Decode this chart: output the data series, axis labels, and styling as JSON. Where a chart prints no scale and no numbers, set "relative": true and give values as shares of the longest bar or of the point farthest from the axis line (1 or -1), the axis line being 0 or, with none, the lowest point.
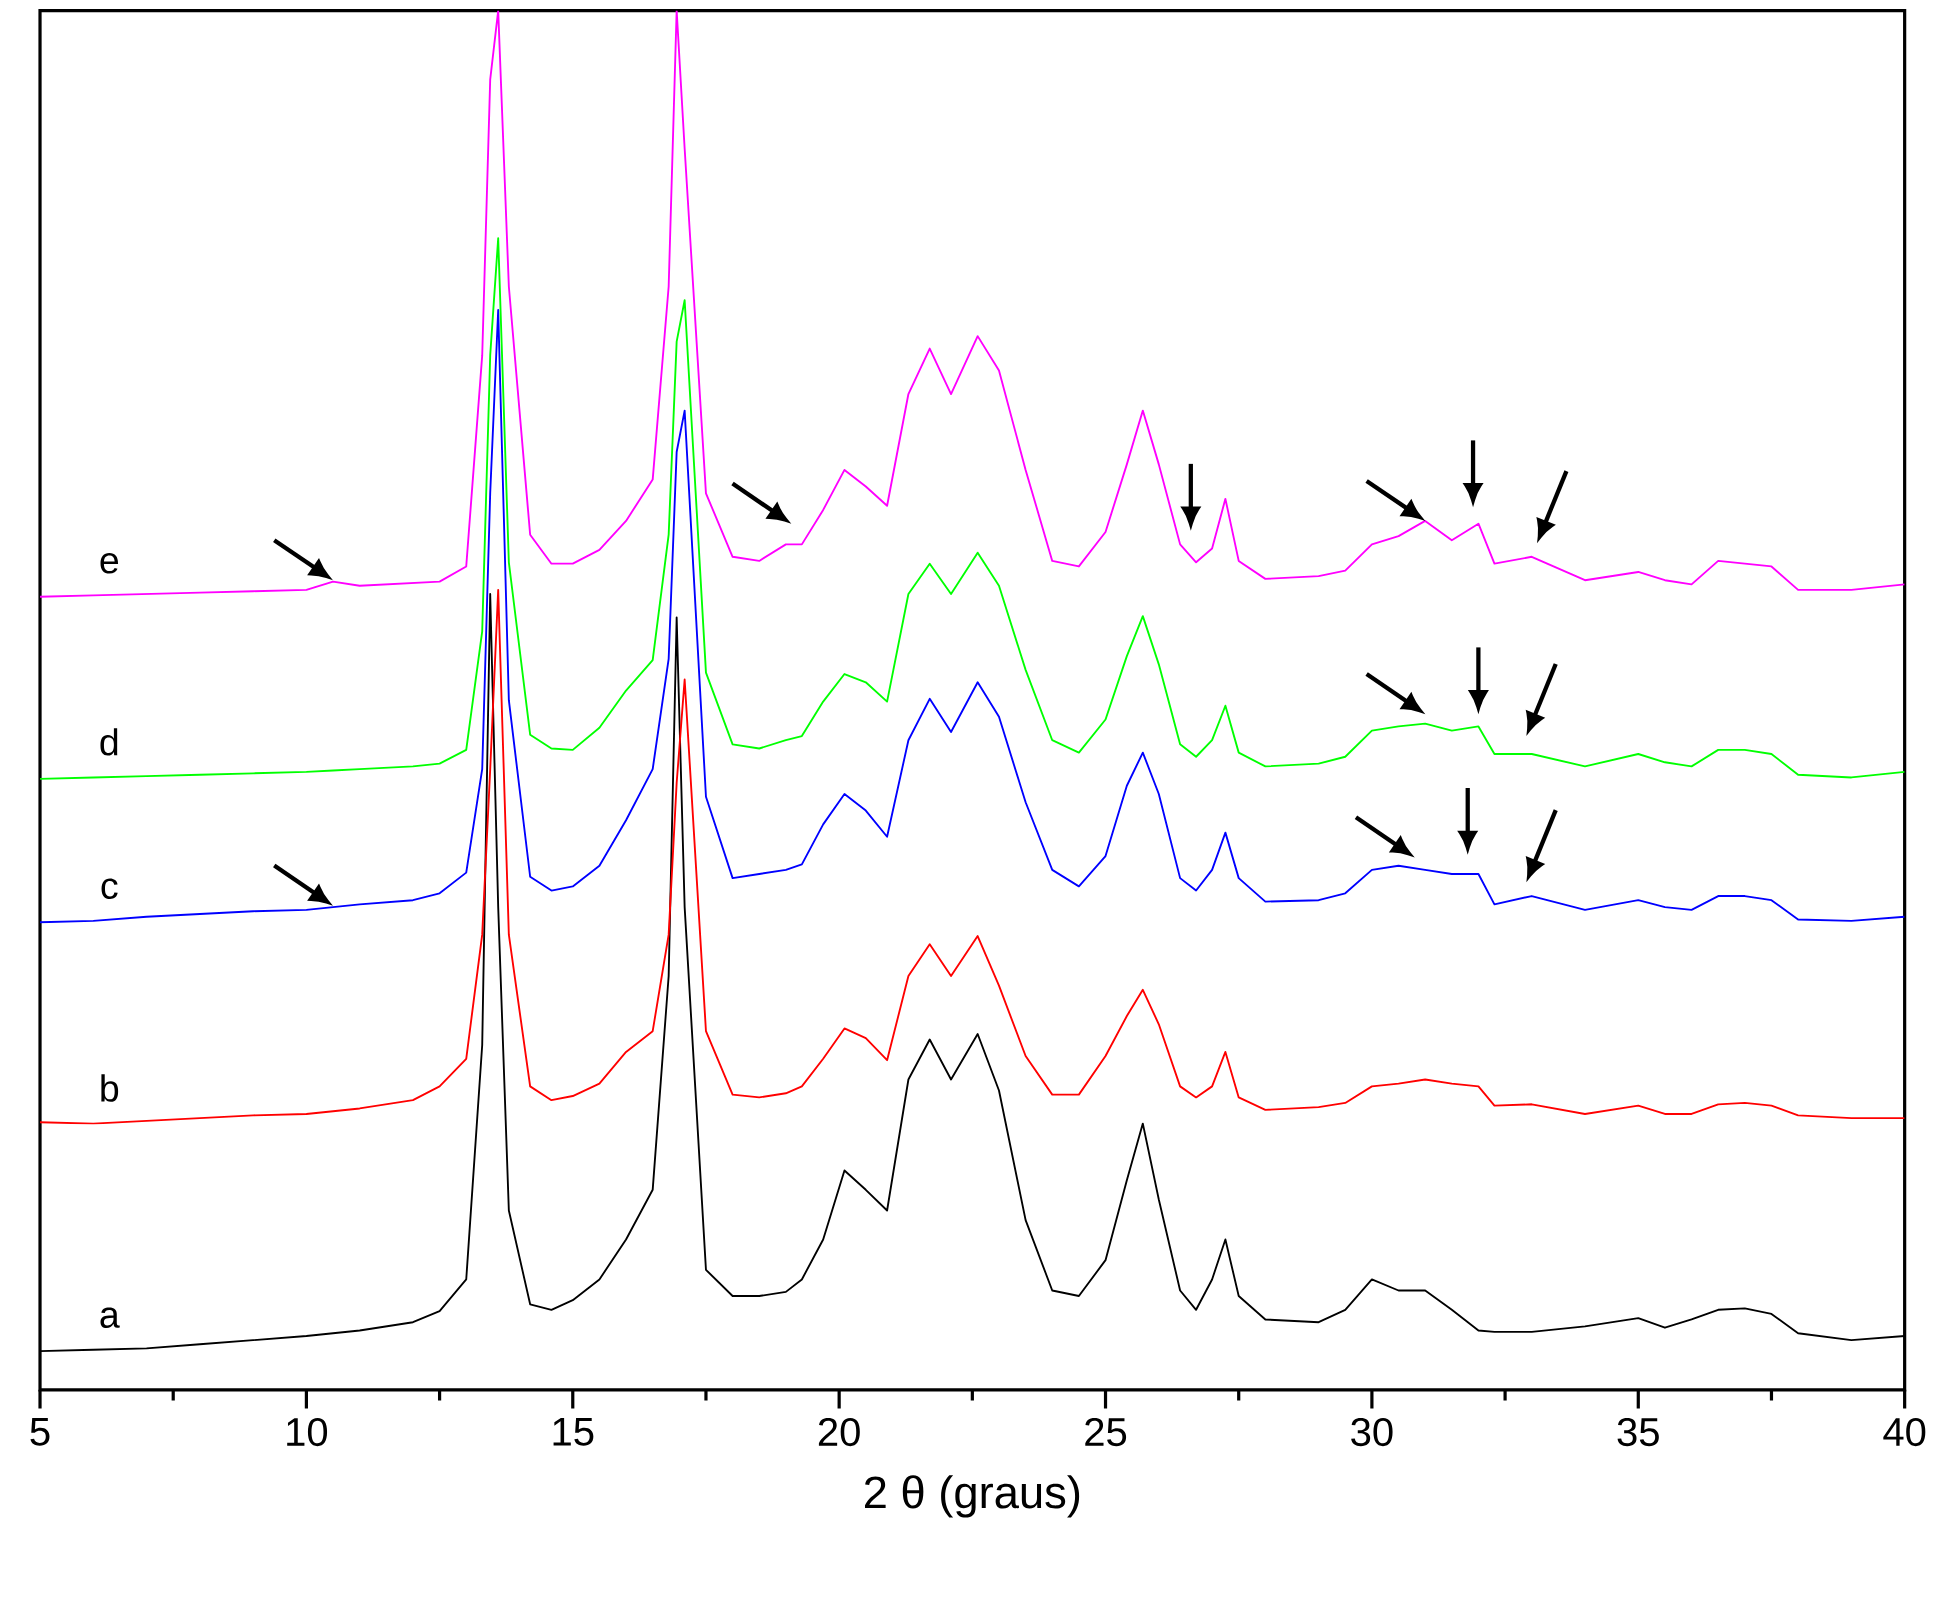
{
  "chart_data": {
    "type": "line",
    "xlabel": "2 θ (graus)",
    "relative": true,
    "xlim": [
      5,
      40
    ],
    "xticks": [
      5,
      10,
      15,
      20,
      25,
      30,
      35,
      40
    ],
    "x": [
      5,
      6,
      7,
      8,
      9,
      10,
      10.5,
      11,
      12,
      12.5,
      13,
      13.3,
      13.45,
      13.6,
      13.8,
      14.2,
      14.6,
      15,
      15.5,
      16,
      16.5,
      16.8,
      16.95,
      17.1,
      17.5,
      18,
      18.5,
      19,
      19.3,
      19.7,
      20.1,
      20.5,
      20.9,
      21.3,
      21.7,
      22.1,
      22.6,
      23,
      23.5,
      24,
      24.5,
      25,
      25.4,
      25.7,
      26,
      26.4,
      26.7,
      27,
      27.25,
      27.5,
      28,
      29,
      29.5,
      30,
      30.5,
      31,
      31.5,
      32,
      32.3,
      33,
      34,
      35,
      35.5,
      36,
      36.5,
      37,
      37.5,
      38,
      39,
      40
    ],
    "series": [
      {
        "name": "a",
        "color": "#000000",
        "values": [
          0.028,
          0.029,
          0.03,
          0.033,
          0.036,
          0.039,
          0.041,
          0.043,
          0.049,
          0.057,
          0.08,
          0.25,
          0.577,
          0.35,
          0.13,
          0.062,
          0.058,
          0.065,
          0.08,
          0.109,
          0.145,
          0.3,
          0.56,
          0.35,
          0.087,
          0.068,
          0.068,
          0.071,
          0.08,
          0.109,
          0.159,
          0.145,
          0.13,
          0.225,
          0.254,
          0.225,
          0.258,
          0.217,
          0.123,
          0.072,
          0.068,
          0.094,
          0.152,
          0.193,
          0.138,
          0.072,
          0.058,
          0.08,
          0.109,
          0.068,
          0.051,
          0.049,
          0.058,
          0.08,
          0.072,
          0.072,
          0.058,
          0.043,
          0.042,
          0.042,
          0.046,
          0.052,
          0.045,
          0.051,
          0.058,
          0.059,
          0.055,
          0.041,
          0.036,
          0.039
        ]
      },
      {
        "name": "b",
        "color": "#ff0000",
        "values": [
          0.194,
          0.193,
          0.195,
          0.197,
          0.199,
          0.2,
          0.202,
          0.204,
          0.21,
          0.22,
          0.24,
          0.33,
          0.45,
          0.58,
          0.33,
          0.22,
          0.21,
          0.213,
          0.222,
          0.245,
          0.26,
          0.33,
          0.44,
          0.515,
          0.26,
          0.214,
          0.212,
          0.215,
          0.22,
          0.24,
          0.262,
          0.255,
          0.239,
          0.3,
          0.323,
          0.3,
          0.329,
          0.293,
          0.242,
          0.214,
          0.214,
          0.242,
          0.271,
          0.29,
          0.265,
          0.22,
          0.212,
          0.22,
          0.245,
          0.212,
          0.203,
          0.205,
          0.208,
          0.22,
          0.222,
          0.225,
          0.222,
          0.22,
          0.206,
          0.207,
          0.2,
          0.206,
          0.2,
          0.2,
          0.207,
          0.208,
          0.206,
          0.199,
          0.197,
          0.197
        ]
      },
      {
        "name": "c",
        "color": "#0000ff",
        "values": [
          0.339,
          0.34,
          0.343,
          0.345,
          0.347,
          0.348,
          0.35,
          0.352,
          0.355,
          0.36,
          0.375,
          0.45,
          0.65,
          0.783,
          0.5,
          0.372,
          0.362,
          0.365,
          0.38,
          0.413,
          0.45,
          0.53,
          0.68,
          0.71,
          0.43,
          0.371,
          0.374,
          0.377,
          0.381,
          0.41,
          0.432,
          0.42,
          0.401,
          0.471,
          0.501,
          0.477,
          0.513,
          0.488,
          0.426,
          0.377,
          0.365,
          0.387,
          0.438,
          0.462,
          0.432,
          0.371,
          0.362,
          0.377,
          0.404,
          0.371,
          0.354,
          0.355,
          0.36,
          0.377,
          0.38,
          0.377,
          0.374,
          0.374,
          0.352,
          0.358,
          0.348,
          0.355,
          0.35,
          0.348,
          0.358,
          0.358,
          0.355,
          0.341,
          0.34,
          0.343
        ]
      },
      {
        "name": "d",
        "color": "#00ff00",
        "values": [
          0.443,
          0.444,
          0.445,
          0.446,
          0.447,
          0.448,
          0.449,
          0.45,
          0.452,
          0.454,
          0.464,
          0.55,
          0.75,
          0.835,
          0.6,
          0.475,
          0.465,
          0.464,
          0.48,
          0.507,
          0.529,
          0.62,
          0.76,
          0.79,
          0.52,
          0.468,
          0.465,
          0.471,
          0.474,
          0.499,
          0.519,
          0.513,
          0.499,
          0.577,
          0.599,
          0.577,
          0.607,
          0.583,
          0.522,
          0.471,
          0.462,
          0.486,
          0.532,
          0.561,
          0.526,
          0.468,
          0.459,
          0.471,
          0.496,
          0.462,
          0.452,
          0.454,
          0.459,
          0.478,
          0.481,
          0.483,
          0.478,
          0.481,
          0.461,
          0.461,
          0.452,
          0.461,
          0.455,
          0.452,
          0.464,
          0.464,
          0.461,
          0.446,
          0.444,
          0.448
        ]
      },
      {
        "name": "e",
        "color": "#ff00ff",
        "values": [
          0.575,
          0.576,
          0.577,
          0.578,
          0.579,
          0.58,
          0.586,
          0.583,
          0.585,
          0.586,
          0.597,
          0.75,
          0.95,
          1.0,
          0.8,
          0.62,
          0.599,
          0.599,
          0.609,
          0.63,
          0.66,
          0.8,
          1.0,
          0.9,
          0.65,
          0.604,
          0.601,
          0.613,
          0.613,
          0.638,
          0.667,
          0.655,
          0.641,
          0.722,
          0.755,
          0.722,
          0.764,
          0.739,
          0.667,
          0.601,
          0.597,
          0.622,
          0.671,
          0.71,
          0.671,
          0.613,
          0.6,
          0.61,
          0.646,
          0.601,
          0.588,
          0.59,
          0.594,
          0.613,
          0.619,
          0.63,
          0.616,
          0.628,
          0.599,
          0.604,
          0.587,
          0.593,
          0.587,
          0.584,
          0.601,
          0.599,
          0.597,
          0.58,
          0.58,
          0.584
        ]
      }
    ]
  }
}
